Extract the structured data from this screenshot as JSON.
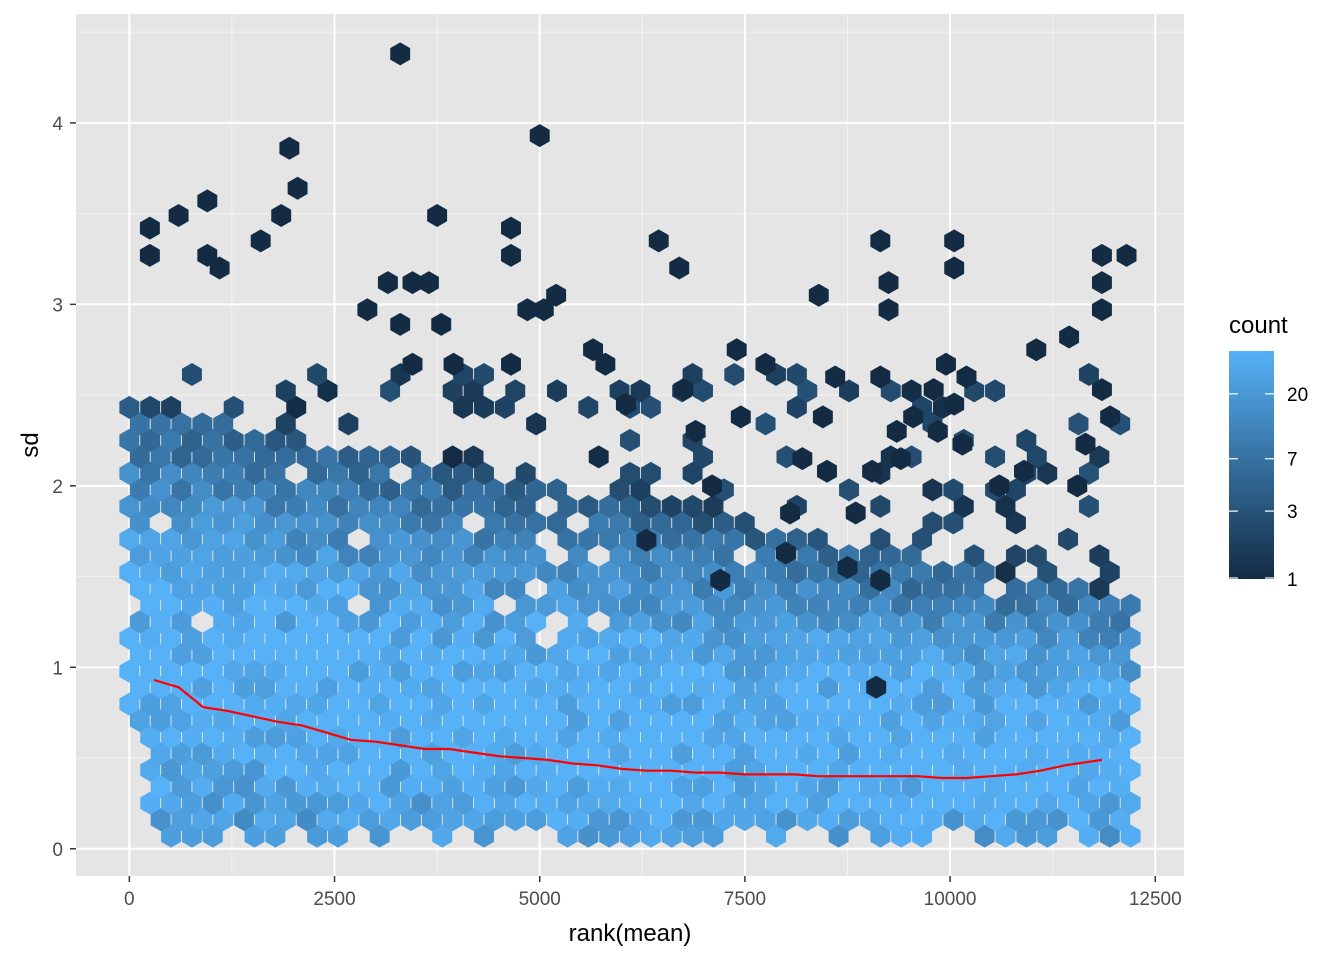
{
  "chart_data": {
    "type": "hexbin",
    "xlabel": "rank(mean)",
    "ylabel": "sd",
    "xlim": [
      -650,
      12850
    ],
    "ylim": [
      -0.15,
      4.6
    ],
    "x_ticks": [
      0,
      2500,
      5000,
      7500,
      10000,
      12500
    ],
    "x_tick_labels": [
      "0",
      "2500",
      "5000",
      "7500",
      "10000",
      "12500"
    ],
    "y_ticks": [
      0,
      1,
      2,
      3,
      4
    ],
    "y_tick_labels": [
      "0",
      "1",
      "2",
      "3",
      "4"
    ],
    "grid": true,
    "panel_background": "#e5e5e5",
    "legend": {
      "title": "count",
      "placement": "right",
      "breaks": [
        1,
        3,
        7,
        20
      ],
      "labels": [
        "1",
        "3",
        "7",
        "20"
      ],
      "max_count": 40,
      "transform": "log",
      "low_color": "#132b43",
      "high_color": "#56b1f7"
    },
    "smooth_line": {
      "color": "#ff0000",
      "x": [
        300,
        600,
        900,
        1200,
        1500,
        1800,
        2100,
        2400,
        2700,
        3000,
        3300,
        3600,
        3900,
        4200,
        4500,
        4800,
        5100,
        5400,
        5700,
        6000,
        6300,
        6600,
        6900,
        7200,
        7500,
        7800,
        8100,
        8400,
        8700,
        9000,
        9300,
        9600,
        9900,
        10200,
        10500,
        10800,
        11100,
        11400,
        11700,
        11850
      ],
      "y": [
        0.93,
        0.89,
        0.78,
        0.76,
        0.73,
        0.7,
        0.68,
        0.64,
        0.6,
        0.59,
        0.57,
        0.55,
        0.55,
        0.53,
        0.51,
        0.5,
        0.49,
        0.47,
        0.46,
        0.44,
        0.43,
        0.43,
        0.42,
        0.42,
        0.41,
        0.41,
        0.41,
        0.4,
        0.4,
        0.4,
        0.4,
        0.4,
        0.39,
        0.39,
        0.4,
        0.41,
        0.43,
        0.46,
        0.48,
        0.49
      ]
    },
    "outlier_points": [
      [
        3300,
        4.38
      ],
      [
        5000,
        3.93
      ],
      [
        1950,
        3.86
      ],
      [
        2050,
        3.64
      ],
      [
        950,
        3.57
      ],
      [
        600,
        3.49
      ],
      [
        1850,
        3.49
      ],
      [
        3750,
        3.49
      ],
      [
        250,
        3.42
      ],
      [
        4650,
        3.42
      ],
      [
        1600,
        3.35
      ],
      [
        6450,
        3.35
      ],
      [
        9150,
        3.35
      ],
      [
        10050,
        3.35
      ],
      [
        250,
        3.27
      ],
      [
        950,
        3.27
      ],
      [
        4650,
        3.27
      ],
      [
        11850,
        3.27
      ],
      [
        12150,
        3.27
      ],
      [
        1100,
        3.2
      ],
      [
        6700,
        3.2
      ],
      [
        10050,
        3.2
      ],
      [
        3150,
        3.12
      ],
      [
        3450,
        3.12
      ],
      [
        3650,
        3.12
      ],
      [
        9250,
        3.12
      ],
      [
        11850,
        3.12
      ],
      [
        5200,
        3.05
      ],
      [
        8400,
        3.05
      ],
      [
        2900,
        2.97
      ],
      [
        4850,
        2.97
      ],
      [
        5050,
        2.97
      ],
      [
        9250,
        2.97
      ],
      [
        11850,
        2.97
      ],
      [
        3300,
        2.89
      ],
      [
        3800,
        2.89
      ],
      [
        11450,
        2.82
      ],
      [
        5650,
        2.75
      ],
      [
        7400,
        2.75
      ],
      [
        11050,
        2.75
      ],
      [
        3450,
        2.67
      ],
      [
        3950,
        2.67
      ],
      [
        4650,
        2.67
      ],
      [
        5800,
        2.67
      ],
      [
        7750,
        2.67
      ],
      [
        9950,
        2.67
      ],
      [
        8600,
        2.6
      ],
      [
        9150,
        2.6
      ],
      [
        10200,
        2.6
      ],
      [
        6750,
        2.53
      ],
      [
        9800,
        2.53
      ],
      [
        11850,
        2.53
      ],
      [
        6050,
        2.45
      ],
      [
        10050,
        2.45
      ],
      [
        8450,
        2.38
      ],
      [
        7450,
        2.38
      ],
      [
        9550,
        2.38
      ],
      [
        11950,
        2.38
      ],
      [
        6900,
        2.3
      ],
      [
        9350,
        2.3
      ],
      [
        9850,
        2.3
      ],
      [
        10150,
        2.23
      ],
      [
        11650,
        2.23
      ],
      [
        9400,
        2.15
      ],
      [
        8200,
        2.15
      ],
      [
        9050,
        2.08
      ],
      [
        8500,
        2.08
      ],
      [
        10900,
        2.08
      ],
      [
        11550,
        2.0
      ],
      [
        10600,
        2.0
      ],
      [
        7100,
        2.0
      ],
      [
        8050,
        1.85
      ],
      [
        8850,
        1.85
      ],
      [
        6300,
        1.7
      ],
      [
        8000,
        1.63
      ],
      [
        8750,
        1.55
      ],
      [
        9150,
        1.48
      ],
      [
        7200,
        1.48
      ],
      [
        9100,
        0.89
      ]
    ]
  }
}
